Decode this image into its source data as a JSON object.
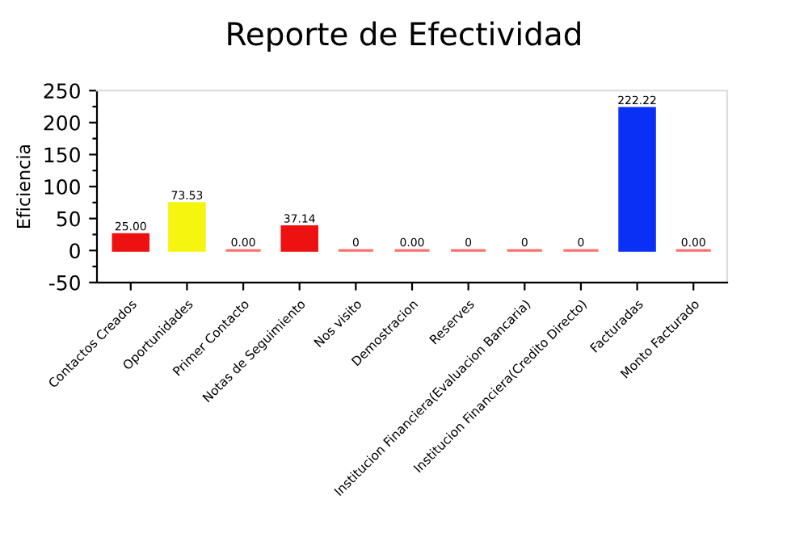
{
  "chart_data": {
    "type": "bar",
    "title": "Reporte de Efectividad",
    "ylabel": "Eficiencia",
    "categories": [
      "Contactos Creados",
      "Oportunidades",
      "Primer Contacto",
      "Notas de Seguimiento",
      "Nos visito",
      "Demostracion",
      "Reserves",
      "Institucion Financiera(Evaluacion Bancaria)",
      "Institucion Financiera(Credito Directo)",
      "Facturadas",
      "Monto Facturado"
    ],
    "values": [
      25.0,
      73.53,
      0,
      37.14,
      0,
      0,
      0,
      0,
      0,
      222.22,
      0
    ],
    "colors": [
      "#ee1111",
      "#f5f50f",
      "#ff7070",
      "#ee1111",
      "#ff7070",
      "#ff7070",
      "#ff7070",
      "#ff7070",
      "#ff7070",
      "#0a30f5",
      "#ff7070"
    ],
    "value_labels": [
      "25.00",
      "73.53",
      "0.00",
      "37.14",
      "0",
      "0.00",
      "0",
      "0",
      "0",
      "222.22",
      "0.00"
    ],
    "ylim": [
      -50,
      250
    ],
    "yticks": [
      -50,
      {
        "value": -25,
        "label": null
      },
      0,
      {
        "value": 25,
        "label": null
      },
      50,
      {
        "value": 75,
        "label": null
      },
      100,
      {
        "value": 125,
        "label": null
      },
      150,
      {
        "value": 175,
        "label": null
      },
      200,
      {
        "value": 225,
        "label": null
      },
      250
    ]
  }
}
